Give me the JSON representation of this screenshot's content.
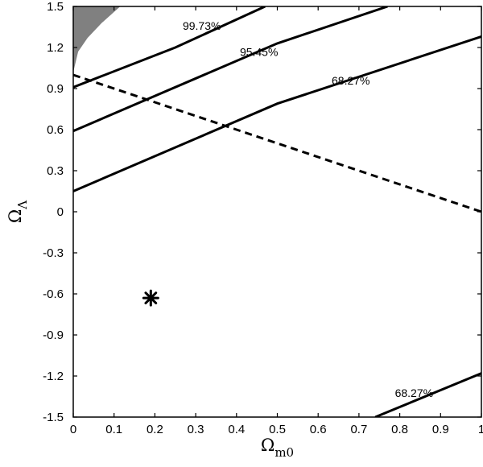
{
  "chart_data": {
    "type": "line",
    "title": "",
    "xlabel": "Ω",
    "xlabel_sub": "m0",
    "ylabel": "Ω",
    "ylabel_sub": "Λ",
    "xlim": [
      0,
      1
    ],
    "ylim": [
      -1.5,
      1.5
    ],
    "grid": false,
    "xticks": [
      {
        "value": 0,
        "label": "0"
      },
      {
        "value": 0.1,
        "label": "0.1"
      },
      {
        "value": 0.2,
        "label": "0.2"
      },
      {
        "value": 0.3,
        "label": "0.3"
      },
      {
        "value": 0.4,
        "label": "0.4"
      },
      {
        "value": 0.5,
        "label": "0.5"
      },
      {
        "value": 0.6,
        "label": "0.6"
      },
      {
        "value": 0.7,
        "label": "0.7"
      },
      {
        "value": 0.8,
        "label": "0.8"
      },
      {
        "value": 0.9,
        "label": "0.9"
      },
      {
        "value": 1,
        "label": "1"
      }
    ],
    "yticks": [
      {
        "value": 1.5,
        "label": "1.5"
      },
      {
        "value": 1.2,
        "label": "1.2"
      },
      {
        "value": 0.9,
        "label": "0.9"
      },
      {
        "value": 0.6,
        "label": "0.6"
      },
      {
        "value": 0.3,
        "label": "0.3"
      },
      {
        "value": 0,
        "label": "0"
      },
      {
        "value": -0.3,
        "label": "-0.3"
      },
      {
        "value": -0.6,
        "label": "-0.6"
      },
      {
        "value": -0.9,
        "label": "-0.9"
      },
      {
        "value": -1.2,
        "label": "-1.2"
      },
      {
        "value": -1.5,
        "label": "-1.5"
      }
    ],
    "shaded_region": {
      "color": "#808080",
      "points": [
        [
          0,
          1.5
        ],
        [
          0.115,
          1.5
        ],
        [
          0.07,
          1.38
        ],
        [
          0.035,
          1.27
        ],
        [
          0.012,
          1.17
        ],
        [
          0,
          1.02
        ]
      ]
    },
    "contours": [
      {
        "level": "68.27%",
        "style": "solid",
        "points": [
          [
            0,
            0.15
          ],
          [
            0.5,
            0.79
          ],
          [
            1,
            1.28
          ]
        ]
      },
      {
        "level": "95.45%",
        "style": "solid",
        "points": [
          [
            0,
            0.59
          ],
          [
            0.5,
            1.23
          ],
          [
            0.77,
            1.5
          ]
        ]
      },
      {
        "level": "99.73%",
        "style": "solid",
        "points": [
          [
            0,
            0.91
          ],
          [
            0.25,
            1.2
          ],
          [
            0.47,
            1.5
          ]
        ]
      },
      {
        "level": "68.27%",
        "style": "solid",
        "points": [
          [
            0.74,
            -1.5
          ],
          [
            1,
            -1.18
          ]
        ]
      }
    ],
    "dashed_line": {
      "style": "dashed",
      "points": [
        [
          0,
          1
        ],
        [
          1,
          0
        ]
      ]
    },
    "best_fit_marker": {
      "x": 0.19,
      "y": -0.63,
      "symbol": "asterisk"
    },
    "contour_labels": [
      {
        "text": "99.73%",
        "x": 0.315,
        "y": 1.35
      },
      {
        "text": "95.45%",
        "x": 0.455,
        "y": 1.16
      },
      {
        "text": "68.27%",
        "x": 0.68,
        "y": 0.95
      },
      {
        "text": "68.27%",
        "x": 0.835,
        "y": -1.33
      }
    ]
  }
}
